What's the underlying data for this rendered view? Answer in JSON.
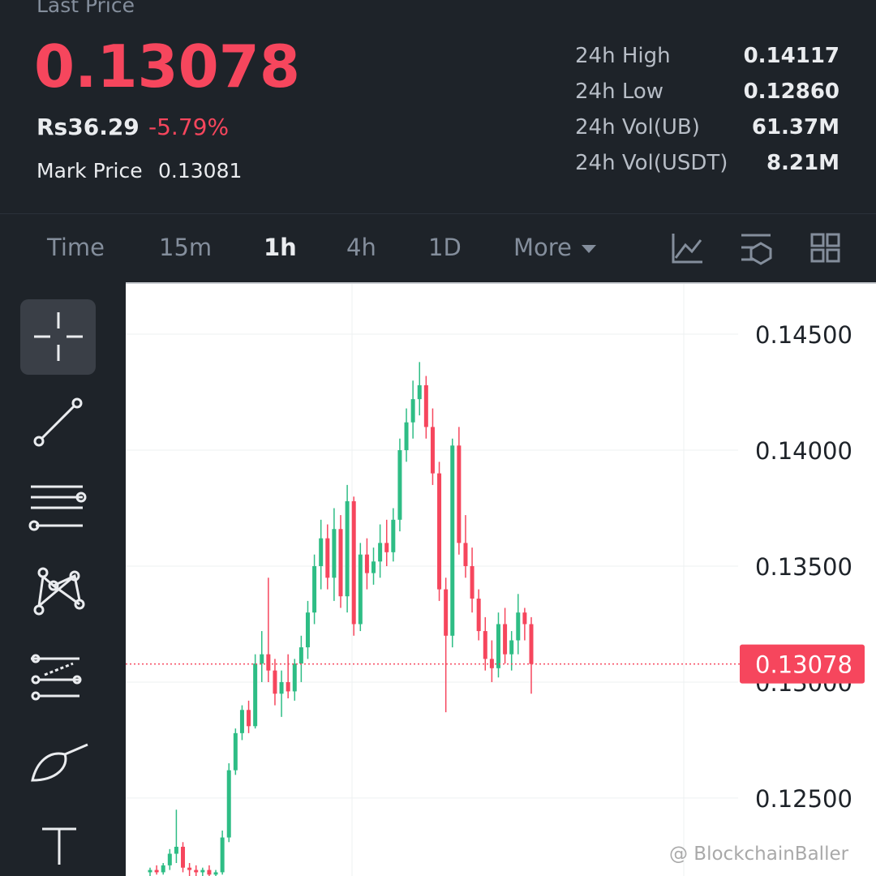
{
  "header": {
    "last_price_label": "Last Price",
    "last_price": "0.13078",
    "fiat_price": "Rs36.29",
    "change": "-5.79%",
    "mark_price_label": "Mark Price",
    "mark_price": "0.13081",
    "stats": [
      {
        "label": "24h High",
        "value": "0.14117"
      },
      {
        "label": "24h Low",
        "value": "0.12860"
      },
      {
        "label": "24h Vol(UB)",
        "value": "61.37M"
      },
      {
        "label": "24h Vol(USDT)",
        "value": "8.21M"
      }
    ]
  },
  "tabs": [
    "Time",
    "15m",
    "1h",
    "4h",
    "1D",
    "More"
  ],
  "watermark": "@ BlockchainBaller",
  "chart_data": {
    "type": "candlestick",
    "up_color": "#2ebd85",
    "down_color": "#f6465d",
    "grid": true,
    "ylim": [
      0.12164,
      0.14717
    ],
    "yticks": [
      {
        "value": 0.145,
        "label": "0.14500"
      },
      {
        "value": 0.14,
        "label": "0.14000"
      },
      {
        "value": 0.135,
        "label": "0.13500"
      },
      {
        "value": 0.13,
        "label": "0.13000"
      },
      {
        "value": 0.125,
        "label": "0.12500"
      }
    ],
    "current_price": 0.13078,
    "candles": [
      {
        "open": 0.1218,
        "high": 0.122,
        "low": 0.1216,
        "close": 0.1219
      },
      {
        "open": 0.1219,
        "high": 0.1221,
        "low": 0.1217,
        "close": 0.1218
      },
      {
        "open": 0.1218,
        "high": 0.1222,
        "low": 0.1217,
        "close": 0.1221
      },
      {
        "open": 0.1221,
        "high": 0.1228,
        "low": 0.1219,
        "close": 0.1226
      },
      {
        "open": 0.1226,
        "high": 0.1245,
        "low": 0.1222,
        "close": 0.1229
      },
      {
        "open": 0.1229,
        "high": 0.1231,
        "low": 0.1218,
        "close": 0.122
      },
      {
        "open": 0.122,
        "high": 0.1222,
        "low": 0.1216,
        "close": 0.1219
      },
      {
        "open": 0.1219,
        "high": 0.1221,
        "low": 0.1216,
        "close": 0.1218
      },
      {
        "open": 0.1218,
        "high": 0.122,
        "low": 0.1216,
        "close": 0.1219
      },
      {
        "open": 0.1219,
        "high": 0.1221,
        "low": 0.1216,
        "close": 0.1217
      },
      {
        "open": 0.1217,
        "high": 0.1219,
        "low": 0.1216,
        "close": 0.1218
      },
      {
        "open": 0.1218,
        "high": 0.1236,
        "low": 0.1217,
        "close": 0.1233
      },
      {
        "open": 0.1233,
        "high": 0.1265,
        "low": 0.1231,
        "close": 0.1262
      },
      {
        "open": 0.1262,
        "high": 0.128,
        "low": 0.126,
        "close": 0.1278
      },
      {
        "open": 0.1278,
        "high": 0.129,
        "low": 0.1275,
        "close": 0.1288
      },
      {
        "open": 0.1288,
        "high": 0.1292,
        "low": 0.1278,
        "close": 0.1281
      },
      {
        "open": 0.1281,
        "high": 0.1312,
        "low": 0.128,
        "close": 0.1308
      },
      {
        "open": 0.1308,
        "high": 0.1322,
        "low": 0.13,
        "close": 0.1312
      },
      {
        "open": 0.1312,
        "high": 0.1345,
        "low": 0.13,
        "close": 0.1305
      },
      {
        "open": 0.1305,
        "high": 0.131,
        "low": 0.129,
        "close": 0.1295
      },
      {
        "open": 0.1295,
        "high": 0.1305,
        "low": 0.1285,
        "close": 0.13
      },
      {
        "open": 0.13,
        "high": 0.1312,
        "low": 0.1293,
        "close": 0.1296
      },
      {
        "open": 0.1296,
        "high": 0.131,
        "low": 0.1292,
        "close": 0.1308
      },
      {
        "open": 0.1308,
        "high": 0.132,
        "low": 0.13,
        "close": 0.1315
      },
      {
        "open": 0.1315,
        "high": 0.1335,
        "low": 0.131,
        "close": 0.133
      },
      {
        "open": 0.133,
        "high": 0.1355,
        "low": 0.1325,
        "close": 0.135
      },
      {
        "open": 0.135,
        "high": 0.137,
        "low": 0.134,
        "close": 0.1362
      },
      {
        "open": 0.1362,
        "high": 0.1368,
        "low": 0.134,
        "close": 0.1345
      },
      {
        "open": 0.1345,
        "high": 0.1375,
        "low": 0.1335,
        "close": 0.1366
      },
      {
        "open": 0.1366,
        "high": 0.1372,
        "low": 0.1332,
        "close": 0.1337
      },
      {
        "open": 0.1337,
        "high": 0.1385,
        "low": 0.133,
        "close": 0.1378
      },
      {
        "open": 0.1378,
        "high": 0.138,
        "low": 0.132,
        "close": 0.1325
      },
      {
        "open": 0.1325,
        "high": 0.136,
        "low": 0.1322,
        "close": 0.1355
      },
      {
        "open": 0.1355,
        "high": 0.1362,
        "low": 0.134,
        "close": 0.1347
      },
      {
        "open": 0.1347,
        "high": 0.1358,
        "low": 0.1342,
        "close": 0.1352
      },
      {
        "open": 0.1352,
        "high": 0.1368,
        "low": 0.1345,
        "close": 0.136
      },
      {
        "open": 0.136,
        "high": 0.137,
        "low": 0.135,
        "close": 0.1356
      },
      {
        "open": 0.1356,
        "high": 0.1375,
        "low": 0.1352,
        "close": 0.137
      },
      {
        "open": 0.137,
        "high": 0.1405,
        "low": 0.1365,
        "close": 0.14
      },
      {
        "open": 0.14,
        "high": 0.1418,
        "low": 0.1395,
        "close": 0.1412
      },
      {
        "open": 0.1412,
        "high": 0.143,
        "low": 0.1405,
        "close": 0.1422
      },
      {
        "open": 0.1422,
        "high": 0.1438,
        "low": 0.1415,
        "close": 0.1428
      },
      {
        "open": 0.1428,
        "high": 0.1432,
        "low": 0.1405,
        "close": 0.141
      },
      {
        "open": 0.141,
        "high": 0.1418,
        "low": 0.1385,
        "close": 0.139
      },
      {
        "open": 0.139,
        "high": 0.1395,
        "low": 0.1335,
        "close": 0.134
      },
      {
        "open": 0.134,
        "high": 0.1345,
        "low": 0.1287,
        "close": 0.132
      },
      {
        "open": 0.132,
        "high": 0.1405,
        "low": 0.1315,
        "close": 0.1402
      },
      {
        "open": 0.1402,
        "high": 0.141,
        "low": 0.1355,
        "close": 0.136
      },
      {
        "open": 0.136,
        "high": 0.1372,
        "low": 0.1345,
        "close": 0.135
      },
      {
        "open": 0.135,
        "high": 0.1358,
        "low": 0.133,
        "close": 0.1336
      },
      {
        "open": 0.1336,
        "high": 0.134,
        "low": 0.1318,
        "close": 0.1322
      },
      {
        "open": 0.1322,
        "high": 0.1328,
        "low": 0.1305,
        "close": 0.131
      },
      {
        "open": 0.131,
        "high": 0.1318,
        "low": 0.13,
        "close": 0.1306
      },
      {
        "open": 0.1306,
        "high": 0.133,
        "low": 0.1302,
        "close": 0.1325
      },
      {
        "open": 0.1325,
        "high": 0.1332,
        "low": 0.1308,
        "close": 0.1312
      },
      {
        "open": 0.1312,
        "high": 0.1322,
        "low": 0.1305,
        "close": 0.1318
      },
      {
        "open": 0.1318,
        "high": 0.1338,
        "low": 0.1312,
        "close": 0.133
      },
      {
        "open": 0.133,
        "high": 0.1332,
        "low": 0.1318,
        "close": 0.1325
      },
      {
        "open": 0.1325,
        "high": 0.1328,
        "low": 0.1295,
        "close": 0.13078
      }
    ]
  }
}
